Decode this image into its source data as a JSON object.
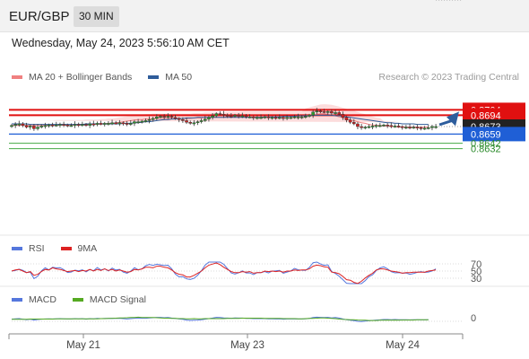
{
  "header": {
    "symbol": "EUR/GBP",
    "timeframe": "30 MIN"
  },
  "timestamp": "Wednesday, May 24, 2023 5:56:10 AM CET",
  "copyright": "Research © 2023 Trading Central",
  "legend_main": [
    {
      "label": "MA 20 + Bollinger Bands",
      "color": "#f08080"
    },
    {
      "label": "MA 50",
      "color": "#2e5c9a"
    }
  ],
  "legend_rsi": [
    {
      "label": "RSI",
      "color": "#5577dd"
    },
    {
      "label": "9MA",
      "color": "#dd2222"
    }
  ],
  "legend_macd": [
    {
      "label": "MACD",
      "color": "#5577dd"
    },
    {
      "label": "MACD Signal",
      "color": "#55aa22"
    }
  ],
  "colors": {
    "resistance": "#e01010",
    "support": "#1f5fd6",
    "target": "#44aa44",
    "arrow": "#2d5d9d",
    "current": "#222222"
  },
  "chart_data": {
    "type": "candlestick",
    "title": "",
    "ylim": [
      0.8623,
      0.8718
    ],
    "x_ticks": [
      "May 21",
      "May 23",
      "May 24"
    ],
    "levels": [
      {
        "value": "0.8704",
        "kind": "resistance"
      },
      {
        "value": "0.8694",
        "kind": "resistance"
      },
      {
        "value": "0.8673",
        "kind": "current"
      },
      {
        "value": "0.8659",
        "kind": "support"
      },
      {
        "value": "0.8642",
        "kind": "target"
      },
      {
        "value": "0.8632",
        "kind": "target"
      }
    ],
    "close": [
      0.8675,
      0.8677,
      0.8678,
      0.8675,
      0.8672,
      0.8674,
      0.8669,
      0.8672,
      0.8674,
      0.8675,
      0.8676,
      0.8675,
      0.8676,
      0.8677,
      0.8676,
      0.8675,
      0.8675,
      0.8677,
      0.8676,
      0.8677,
      0.8675,
      0.8678,
      0.8677,
      0.8679,
      0.8678,
      0.8679,
      0.8679,
      0.868,
      0.8679,
      0.868,
      0.8679,
      0.8677,
      0.8679,
      0.8682,
      0.8682,
      0.8683,
      0.8684,
      0.8686,
      0.8688,
      0.8691,
      0.8692,
      0.8691,
      0.8692,
      0.869,
      0.8688,
      0.8686,
      0.8684,
      0.8681,
      0.8679,
      0.868,
      0.8682,
      0.8684,
      0.8687,
      0.869,
      0.8693,
      0.8697,
      0.8696,
      0.8694,
      0.8693,
      0.8692,
      0.8694,
      0.8693,
      0.8693,
      0.8691,
      0.8691,
      0.869,
      0.869,
      0.869,
      0.8691,
      0.869,
      0.869,
      0.8689,
      0.869,
      0.8689,
      0.869,
      0.869,
      0.8691,
      0.8691,
      0.8691,
      0.8692,
      0.8694,
      0.87,
      0.8702,
      0.8701,
      0.87,
      0.8701,
      0.8698,
      0.8699,
      0.8696,
      0.869,
      0.8685,
      0.8681,
      0.8678,
      0.8673,
      0.8671,
      0.8672,
      0.8673,
      0.8674,
      0.8675,
      0.8675,
      0.8676,
      0.8675,
      0.8674,
      0.8674,
      0.8673,
      0.8672,
      0.8672,
      0.8671,
      0.8672,
      0.8671,
      0.867,
      0.867,
      0.8671,
      0.8673,
      0.8673
    ],
    "ma20": [
      0.8675,
      0.8675,
      0.8675,
      0.8675,
      0.8675,
      0.8675,
      0.8675,
      0.8675,
      0.8675,
      0.8675,
      0.8675,
      0.8675,
      0.8676,
      0.8676,
      0.8676,
      0.8676,
      0.8676,
      0.8676,
      0.8676,
      0.8676,
      0.8677,
      0.8677,
      0.8677,
      0.8677,
      0.8678,
      0.8678,
      0.8679,
      0.8679,
      0.868,
      0.8681,
      0.8682,
      0.8683,
      0.8684,
      0.8685,
      0.8686,
      0.8686,
      0.8687,
      0.8687,
      0.8688,
      0.8688,
      0.8688,
      0.8688,
      0.8688,
      0.8688,
      0.8688,
      0.8688,
      0.8688,
      0.8688,
      0.8688,
      0.8689,
      0.8689,
      0.8689,
      0.869,
      0.869,
      0.869,
      0.869,
      0.869,
      0.869,
      0.8691,
      0.8691,
      0.8691,
      0.8691,
      0.8692,
      0.8692,
      0.8692,
      0.8692,
      0.8692,
      0.8692,
      0.8692,
      0.8692,
      0.8692,
      0.8692,
      0.8692,
      0.8692,
      0.8692,
      0.8692,
      0.8692,
      0.8692,
      0.8692,
      0.8693,
      0.8694,
      0.8695,
      0.8696,
      0.8697,
      0.8697,
      0.8696,
      0.8695,
      0.8693,
      0.8691,
      0.8689,
      0.8687,
      0.8685,
      0.8684,
      0.8682,
      0.868,
      0.8679,
      0.8677,
      0.8676,
      0.8675,
      0.8675,
      0.8674,
      0.8674,
      0.8673,
      0.8673,
      0.8672,
      0.8672,
      0.8672,
      0.8672,
      0.8672,
      0.8672,
      0.8672,
      0.8672,
      0.8672
    ],
    "ma50": [
      0.8678,
      0.8678,
      0.8678,
      0.8678,
      0.8678,
      0.8677,
      0.8677,
      0.8677,
      0.8677,
      0.8677,
      0.8677,
      0.8677,
      0.8677,
      0.8677,
      0.8677,
      0.8677,
      0.8677,
      0.8677,
      0.8677,
      0.8677,
      0.8678,
      0.8678,
      0.8678,
      0.8678,
      0.8678,
      0.8678,
      0.8678,
      0.8678,
      0.8678,
      0.8678,
      0.8679,
      0.8679,
      0.8679,
      0.868,
      0.868,
      0.8681,
      0.8682,
      0.8682,
      0.8683,
      0.8684,
      0.8685,
      0.8686,
      0.8686,
      0.8687,
      0.8687,
      0.8688,
      0.8688,
      0.8689,
      0.8689,
      0.8689,
      0.869,
      0.869,
      0.869,
      0.869,
      0.869,
      0.869,
      0.869,
      0.869,
      0.869,
      0.869,
      0.869,
      0.869,
      0.869,
      0.869,
      0.869,
      0.869,
      0.869,
      0.869,
      0.8691,
      0.8691,
      0.8691,
      0.8691,
      0.8691,
      0.8692,
      0.8692,
      0.8692,
      0.8692,
      0.8693,
      0.8693,
      0.8693,
      0.8693,
      0.8694,
      0.8694,
      0.8694,
      0.8694,
      0.8694,
      0.8694,
      0.8693,
      0.8693,
      0.8692,
      0.8691,
      0.869,
      0.8689,
      0.8688,
      0.8687,
      0.8686,
      0.8685,
      0.8684,
      0.8683,
      0.8682,
      0.8681,
      0.868,
      0.868,
      0.8679,
      0.8679,
      0.8678,
      0.8678,
      0.8678,
      0.8678,
      0.8677,
      0.8677,
      0.8677,
      0.8677
    ],
    "rsi": {
      "ticks": [
        "70",
        "50",
        "30"
      ]
    },
    "macd": {
      "ticks": [
        "0"
      ]
    }
  }
}
